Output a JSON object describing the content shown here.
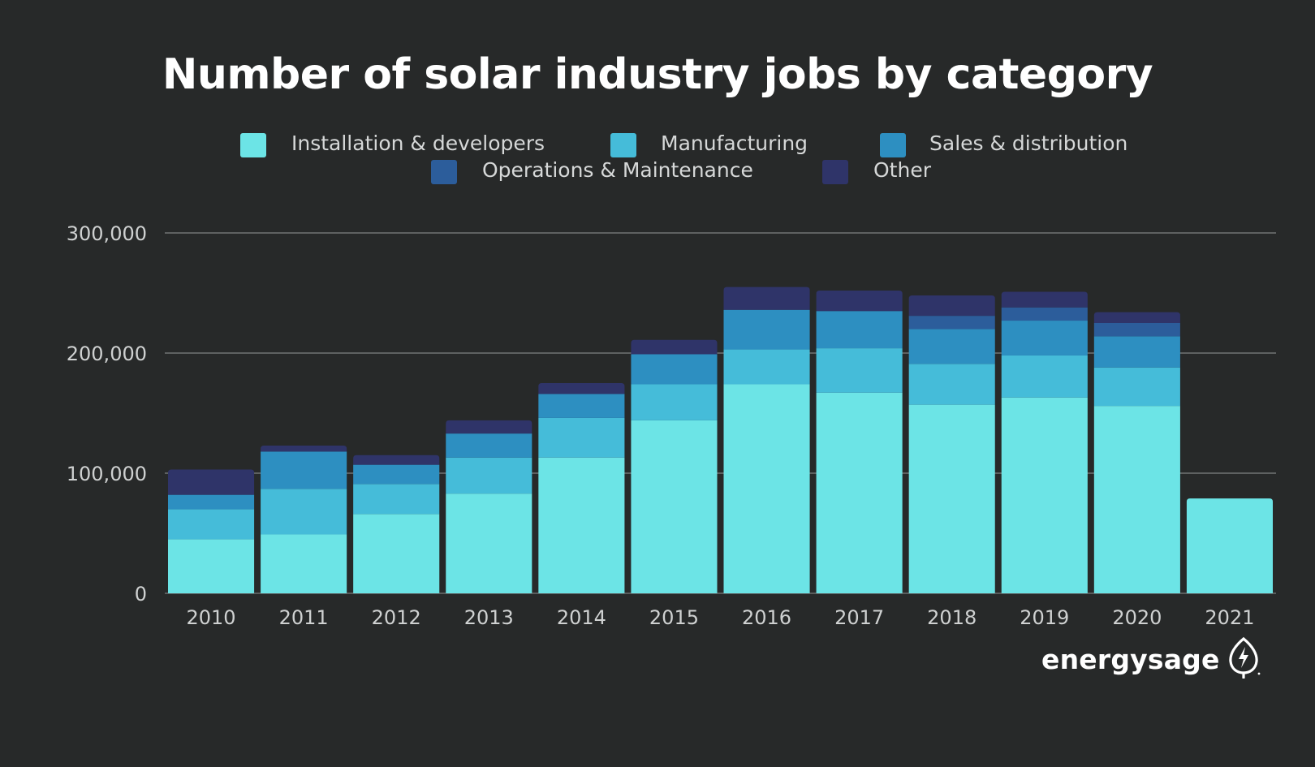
{
  "chart_data": {
    "type": "bar",
    "stacked": true,
    "title": "Number of solar industry jobs by category",
    "categories": [
      "2010",
      "2011",
      "2012",
      "2013",
      "2014",
      "2015",
      "2016",
      "2017",
      "2018",
      "2019",
      "2020",
      "2021"
    ],
    "series": [
      {
        "name": "Installation & developers",
        "color": "#6ce4e6",
        "values": [
          45000,
          49000,
          66000,
          83000,
          113000,
          144000,
          174000,
          167000,
          157000,
          163000,
          156000,
          79000
        ]
      },
      {
        "name": "Manufacturing",
        "color": "#45bcd9",
        "values": [
          25000,
          38000,
          25000,
          30000,
          33000,
          30000,
          29000,
          37000,
          34000,
          35000,
          32000,
          0
        ]
      },
      {
        "name": "Sales & distribution",
        "color": "#2d8fc1",
        "values": [
          12000,
          31000,
          16000,
          20000,
          20000,
          25000,
          33000,
          31000,
          29000,
          29000,
          26000,
          0
        ]
      },
      {
        "name": "Operations & Maintenance",
        "color": "#2c5d9b",
        "values": [
          0,
          0,
          0,
          0,
          0,
          0,
          0,
          0,
          11000,
          11000,
          11000,
          0
        ]
      },
      {
        "name": "Other",
        "color": "#2f3469",
        "values": [
          21000,
          5000,
          8000,
          11000,
          9000,
          12000,
          19000,
          17000,
          17000,
          13000,
          9000,
          0
        ]
      }
    ],
    "ylim": [
      0,
      300000
    ],
    "yticks": [
      0,
      100000,
      200000,
      300000
    ],
    "ytick_labels": [
      "0",
      "100,000",
      "200,000",
      "300,000"
    ],
    "grid": true,
    "legend_position": "top-center",
    "xlabel": "",
    "ylabel": ""
  },
  "branding": {
    "name": "energysage"
  }
}
